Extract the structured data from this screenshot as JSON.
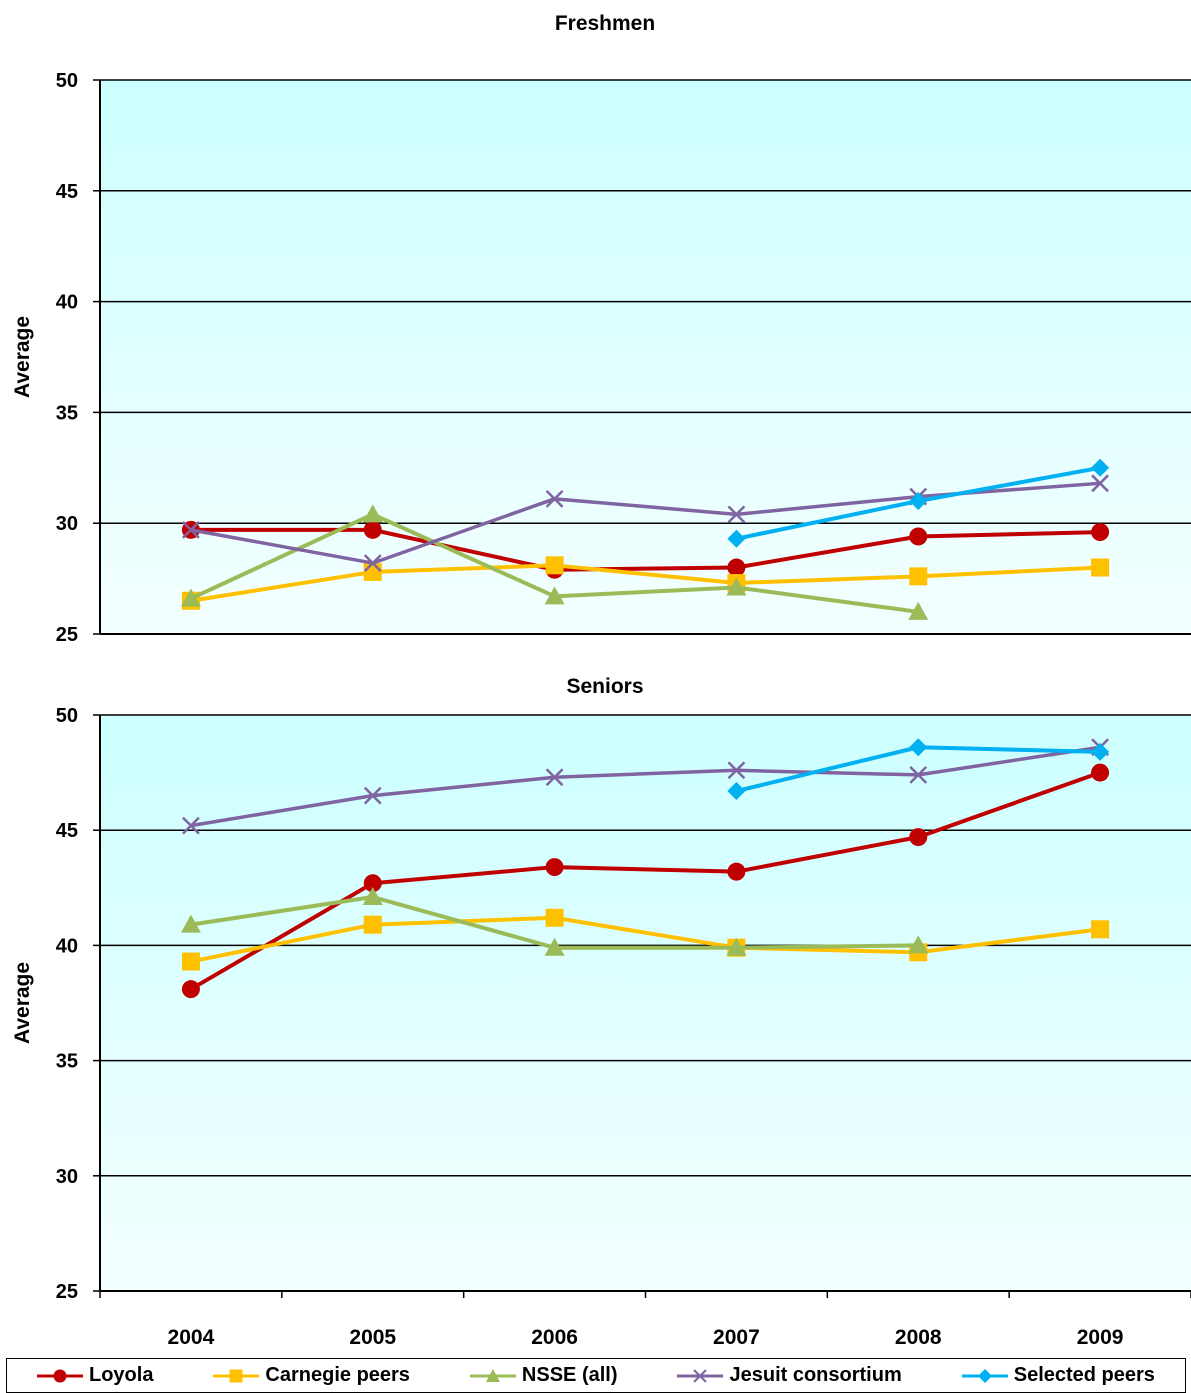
{
  "chart_data": [
    {
      "type": "line",
      "title": "Freshmen",
      "xlabel": "",
      "ylabel": "Average",
      "ylim": [
        25,
        50
      ],
      "yticks": [
        25,
        30,
        35,
        40,
        45,
        50
      ],
      "categories": [
        "2004",
        "2005",
        "2006",
        "2007",
        "2008",
        "2009"
      ],
      "grid": true,
      "series": [
        {
          "name": "Loyola",
          "color": "#c00000",
          "marker": "circle",
          "values": [
            29.7,
            29.7,
            27.9,
            28.0,
            29.4,
            29.6
          ]
        },
        {
          "name": "Carnegie peers",
          "color": "#ffc000",
          "marker": "square",
          "values": [
            26.5,
            27.8,
            28.1,
            27.3,
            27.6,
            28.0
          ]
        },
        {
          "name": "NSSE (all)",
          "color": "#9bbb59",
          "marker": "triangle",
          "values": [
            26.6,
            30.4,
            26.7,
            27.1,
            26.0,
            null
          ]
        },
        {
          "name": "Jesuit consortium",
          "color": "#8064a2",
          "marker": "x",
          "values": [
            29.7,
            28.2,
            31.1,
            30.4,
            31.2,
            31.8
          ]
        },
        {
          "name": "Selected peers",
          "color": "#00b0f0",
          "marker": "diamond",
          "values": [
            null,
            null,
            null,
            29.3,
            31.0,
            32.5
          ]
        }
      ]
    },
    {
      "type": "line",
      "title": "Seniors",
      "xlabel": "",
      "ylabel": "Average",
      "ylim": [
        25,
        50
      ],
      "yticks": [
        25,
        30,
        35,
        40,
        45,
        50
      ],
      "categories": [
        "2004",
        "2005",
        "2006",
        "2007",
        "2008",
        "2009"
      ],
      "grid": true,
      "series": [
        {
          "name": "Loyola",
          "color": "#c00000",
          "marker": "circle",
          "values": [
            38.1,
            42.7,
            43.4,
            43.2,
            44.7,
            47.5
          ]
        },
        {
          "name": "Carnegie peers",
          "color": "#ffc000",
          "marker": "square",
          "values": [
            39.3,
            40.9,
            41.2,
            39.9,
            39.7,
            40.7
          ]
        },
        {
          "name": "NSSE (all)",
          "color": "#9bbb59",
          "marker": "triangle",
          "values": [
            40.9,
            42.1,
            39.9,
            39.9,
            40.0,
            null
          ]
        },
        {
          "name": "Jesuit consortium",
          "color": "#8064a2",
          "marker": "x",
          "values": [
            45.2,
            46.5,
            47.3,
            47.6,
            47.4,
            48.6
          ]
        },
        {
          "name": "Selected peers",
          "color": "#00b0f0",
          "marker": "diamond",
          "values": [
            null,
            null,
            null,
            46.7,
            48.6,
            48.4
          ]
        }
      ]
    }
  ],
  "legend": {
    "position": "bottom",
    "items": [
      {
        "label": "Loyola",
        "color": "#c00000",
        "marker": "circle"
      },
      {
        "label": "Carnegie peers",
        "color": "#ffc000",
        "marker": "square"
      },
      {
        "label": "NSSE (all)",
        "color": "#9bbb59",
        "marker": "triangle"
      },
      {
        "label": "Jesuit consortium",
        "color": "#8064a2",
        "marker": "x"
      },
      {
        "label": "Selected peers",
        "color": "#00b0f0",
        "marker": "diamond"
      }
    ]
  },
  "colors": {
    "plot_top": "#ccffff",
    "plot_bottom": "#f4ffff"
  }
}
